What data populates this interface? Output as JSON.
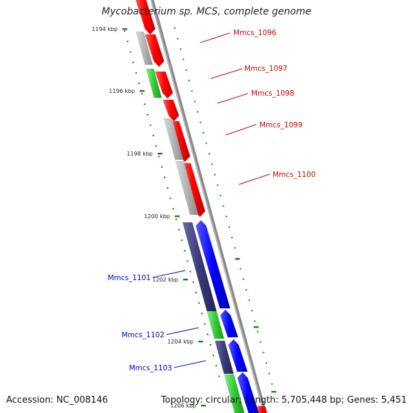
{
  "title": "Mycobacterium sp. MCS, complete genome",
  "footer": {
    "accession": "Accession: NC_008146",
    "topology": "Topology: circular; Length: 5,705,448 bp; Genes: 5,451"
  },
  "colors": {
    "backbone": "#888888",
    "red": "#ff0000",
    "gray": "#b4b4b4",
    "green": "#33cc33",
    "blue": "#0000ff",
    "navy": "#3a3a7a",
    "tick": "#1a7a1a",
    "red_label": "#cc0000",
    "blue_label": "#0000cc"
  },
  "ruler_labels": [
    "1194 kbp",
    "1196 kbp",
    "1198 kbp",
    "1200 kbp",
    "1202 kbp",
    "1204 kbp",
    "1206 kbp"
  ],
  "gene_labels": [
    {
      "text": "Mmcs_1096",
      "color": "red"
    },
    {
      "text": "Mmcs_1097",
      "color": "red"
    },
    {
      "text": "Mmcs_1098",
      "color": "red"
    },
    {
      "text": "Mmcs_1099",
      "color": "red"
    },
    {
      "text": "Mmcs_1100",
      "color": "red"
    },
    {
      "text": "Mmcs_1101",
      "color": "blue"
    },
    {
      "text": "Mmcs_1102",
      "color": "blue"
    },
    {
      "text": "Mmcs_1103",
      "color": "blue"
    }
  ]
}
